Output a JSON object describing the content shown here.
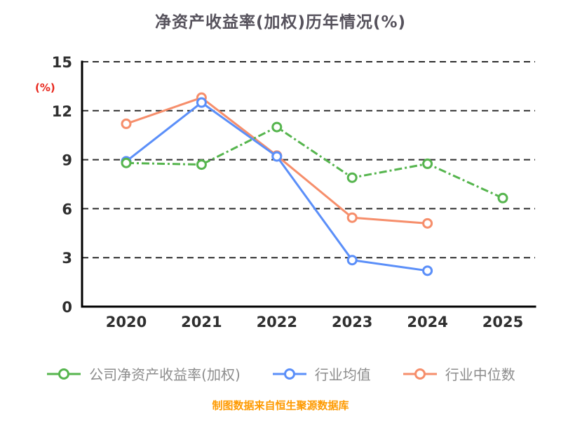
{
  "title": "净资产收益率(加权)历年情况(%)",
  "y_axis_unit": "(%)",
  "footer": "制图数据来自恒生聚源数据库",
  "chart_data": {
    "type": "line",
    "title": "净资产收益率(加权)历年情况(%)",
    "categories": [
      "2020",
      "2021",
      "2022",
      "2023",
      "2024",
      "2025"
    ],
    "series": [
      {
        "name": "公司净资产收益率(加权)",
        "color": "#56b54e",
        "line_style": "dash-dot",
        "values": [
          8.8,
          8.7,
          11.0,
          7.9,
          8.75,
          6.65
        ]
      },
      {
        "name": "行业均值",
        "color": "#5b8ff9",
        "line_style": "solid",
        "values": [
          8.9,
          12.5,
          9.2,
          2.85,
          2.2,
          null
        ]
      },
      {
        "name": "行业中位数",
        "color": "#f68e6b",
        "line_style": "solid",
        "values": [
          11.2,
          12.8,
          9.25,
          5.45,
          5.1,
          null
        ]
      }
    ],
    "xlabel": "",
    "ylabel": "(%)",
    "ylim": [
      0,
      15
    ],
    "yticks": [
      0,
      3,
      6,
      9,
      12,
      15
    ],
    "grid": "dashed-horizontal",
    "legend_position": "bottom"
  }
}
